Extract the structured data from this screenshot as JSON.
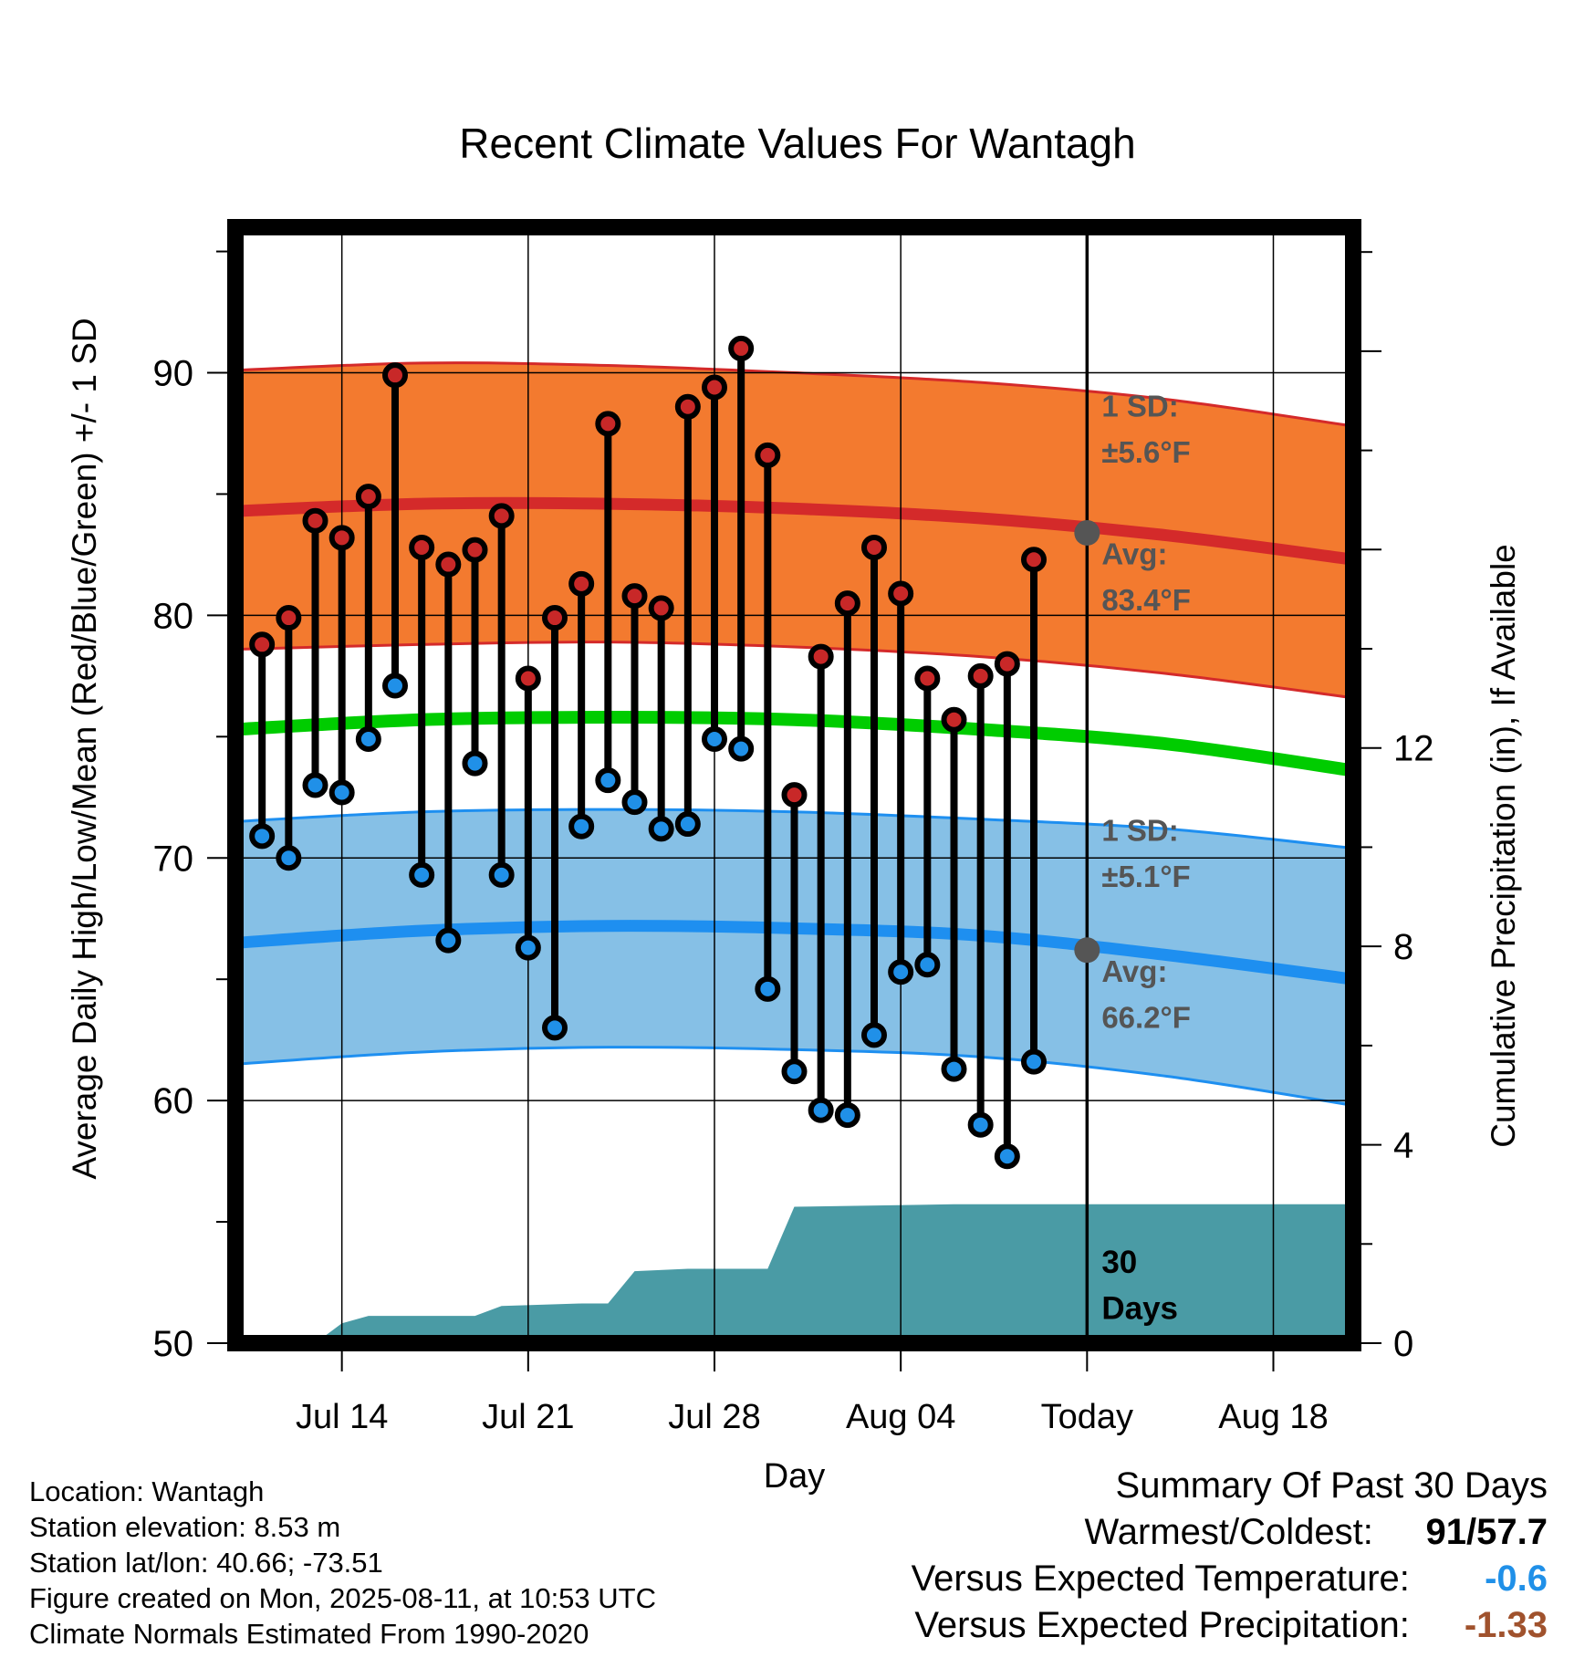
{
  "chart_data": {
    "type": "line",
    "title": "Recent Climate Values For Wantagh",
    "xlabel": "Day",
    "ylabel": "Average Daily High/Low/Mean (Red/Blue/Green) +/- 1 SD",
    "y2label": "Cumulative Precipitation (in), If Available",
    "ylim": [
      50,
      96
    ],
    "y2lim": [
      0,
      22.5
    ],
    "yticks": [
      "50",
      "60",
      "70",
      "80",
      "90"
    ],
    "y2ticks": [
      "0",
      "4",
      "8",
      "12"
    ],
    "xlim": [
      "2025-07-10",
      "2025-08-21"
    ],
    "xticks": [
      {
        "date": "2025-07-14",
        "label": "Jul 14"
      },
      {
        "date": "2025-07-21",
        "label": "Jul 21"
      },
      {
        "date": "2025-07-28",
        "label": "Jul 28"
      },
      {
        "date": "2025-08-04",
        "label": "Aug 04"
      },
      {
        "date": "2025-08-11",
        "label": "Today"
      },
      {
        "date": "2025-08-18",
        "label": "Aug 18"
      }
    ],
    "today": "2025-08-11",
    "grid": true,
    "colors": {
      "high_band": "#f37a2f",
      "high_line": "#d42a2a",
      "low_band": "#86c0e6",
      "low_line": "#1e8ff0",
      "mean_line": "#00cc00",
      "precip": "#4a9ba5",
      "high_dot": "#c82828",
      "low_dot": "#2090e8",
      "today_marker": "#555555",
      "label": "#555555"
    },
    "normals": {
      "dates": [
        "2025-07-10",
        "2025-07-17",
        "2025-07-24",
        "2025-07-31",
        "2025-08-07",
        "2025-08-14",
        "2025-08-21"
      ],
      "high_avg": [
        84.3,
        84.6,
        84.6,
        84.4,
        84.0,
        83.3,
        82.3
      ],
      "high_upper": [
        90.1,
        90.4,
        90.3,
        90.0,
        89.6,
        88.9,
        87.8
      ],
      "high_lower": [
        78.6,
        78.8,
        78.9,
        78.7,
        78.3,
        77.6,
        76.6
      ],
      "mean": [
        75.3,
        75.7,
        75.8,
        75.7,
        75.3,
        74.7,
        73.6
      ],
      "low_avg": [
        66.5,
        67.0,
        67.2,
        67.1,
        66.8,
        66.0,
        65.0
      ],
      "low_upper": [
        71.5,
        71.9,
        72.0,
        71.9,
        71.6,
        71.2,
        70.4
      ],
      "low_lower": [
        61.5,
        62.0,
        62.2,
        62.1,
        61.8,
        61.0,
        59.8
      ]
    },
    "series": [
      {
        "name": "High",
        "dates": [
          "2025-07-11",
          "2025-07-12",
          "2025-07-13",
          "2025-07-14",
          "2025-07-15",
          "2025-07-16",
          "2025-07-17",
          "2025-07-18",
          "2025-07-19",
          "2025-07-20",
          "2025-07-21",
          "2025-07-22",
          "2025-07-23",
          "2025-07-24",
          "2025-07-25",
          "2025-07-26",
          "2025-07-27",
          "2025-07-28",
          "2025-07-29",
          "2025-07-30",
          "2025-07-31",
          "2025-08-01",
          "2025-08-02",
          "2025-08-03",
          "2025-08-04",
          "2025-08-05",
          "2025-08-06",
          "2025-08-07",
          "2025-08-08",
          "2025-08-09",
          "2025-08-10"
        ],
        "values": [
          78.8,
          79.9,
          83.9,
          83.2,
          84.9,
          89.9,
          82.8,
          82.1,
          82.7,
          84.1,
          77.4,
          79.9,
          81.3,
          87.9,
          80.8,
          80.3,
          88.6,
          89.4,
          91.0,
          86.6,
          72.6,
          78.3,
          80.5,
          82.8,
          80.9,
          77.4,
          75.7,
          77.5,
          78.0,
          82.3,
          null
        ]
      },
      {
        "name": "Low",
        "dates": [
          "2025-07-11",
          "2025-07-12",
          "2025-07-13",
          "2025-07-14",
          "2025-07-15",
          "2025-07-16",
          "2025-07-17",
          "2025-07-18",
          "2025-07-19",
          "2025-07-20",
          "2025-07-21",
          "2025-07-22",
          "2025-07-23",
          "2025-07-24",
          "2025-07-25",
          "2025-07-26",
          "2025-07-27",
          "2025-07-28",
          "2025-07-29",
          "2025-07-30",
          "2025-07-31",
          "2025-08-01",
          "2025-08-02",
          "2025-08-03",
          "2025-08-04",
          "2025-08-05",
          "2025-08-06",
          "2025-08-07",
          "2025-08-08",
          "2025-08-09",
          "2025-08-10"
        ],
        "values": [
          70.9,
          70.0,
          73.0,
          72.7,
          74.9,
          77.1,
          69.3,
          66.6,
          73.9,
          69.3,
          66.3,
          63.0,
          71.3,
          73.2,
          72.3,
          71.2,
          71.4,
          74.9,
          74.5,
          64.6,
          61.2,
          59.6,
          59.4,
          62.7,
          65.3,
          65.6,
          61.3,
          59.0,
          57.7,
          61.6,
          null
        ]
      }
    ],
    "precip": {
      "dates": [
        "2025-07-12",
        "2025-07-13",
        "2025-07-14",
        "2025-07-15",
        "2025-07-19",
        "2025-07-20",
        "2025-07-23",
        "2025-07-24",
        "2025-07-25",
        "2025-07-27",
        "2025-07-29",
        "2025-07-30",
        "2025-07-31",
        "2025-08-06",
        "2025-08-21"
      ],
      "values": [
        0,
        0,
        0.4,
        0.55,
        0.55,
        0.75,
        0.8,
        0.8,
        1.45,
        1.5,
        1.5,
        1.5,
        2.75,
        2.8,
        2.8
      ]
    },
    "annotations": {
      "high_sd": {
        "line1": "1 SD:",
        "line2": "±5.6°F"
      },
      "high_avg": {
        "line1": "Avg:",
        "line2": "83.4°F"
      },
      "low_sd": {
        "line1": "1 SD:",
        "line2": "±5.1°F"
      },
      "low_avg": {
        "line1": "Avg:",
        "line2": "66.2°F"
      },
      "days": {
        "line1": "30",
        "line2": "Days"
      }
    },
    "today_high_avg": 83.4,
    "today_low_avg": 66.2
  },
  "footer": {
    "location": "Location: Wantagh",
    "elevation": "Station elevation: 8.53 m",
    "latlon": "Station lat/lon: 40.66; -73.51",
    "created": "Figure created on Mon, 2025-08-11, at 10:53 UTC",
    "normals": "Climate Normals Estimated From 1990-2020"
  },
  "summary": {
    "heading": "Summary Of Past 30 Days",
    "warmest_label": "Warmest/Coldest:",
    "warmest_high": "91",
    "warmest_sep": "/",
    "warmest_low": "57.7",
    "temp_label": "Versus Expected Temperature:",
    "temp_value": "-0.6",
    "precip_label": "Versus Expected Precipitation:",
    "precip_value": "-1.33",
    "colors": {
      "temp": "#2090e8",
      "precip": "#a0522d"
    }
  }
}
